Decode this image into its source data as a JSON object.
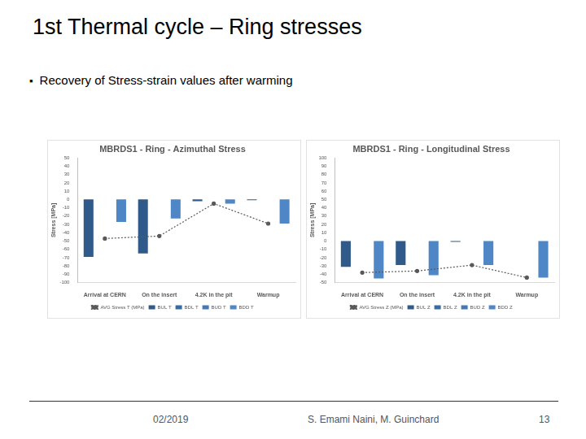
{
  "slide": {
    "title": "1st Thermal cycle – Ring stresses",
    "bullet": "Recovery of Stress-strain values after warming",
    "footer": {
      "date": "02/2019",
      "authors": "S. Emami Naini, M. Guinchard",
      "page": "13"
    }
  },
  "chart_data": [
    {
      "type": "bar",
      "title": "MBRDS1 - Ring - Azimuthal Stress",
      "y_label": "Stress [MPa]",
      "categories": [
        "Arrival at CERN",
        "On the insert",
        "4.2K in the pit",
        "Warmup"
      ],
      "series": [
        {
          "name": "BUL T",
          "color": "#2f5a8a",
          "values": [
            -69,
            -65,
            -2,
            -1
          ]
        },
        {
          "name": "BDL T",
          "color": "#3a6aa3",
          "values": [
            null,
            null,
            null,
            null
          ]
        },
        {
          "name": "BUD T",
          "color": "#4678b6",
          "values": [
            null,
            null,
            null,
            null
          ]
        },
        {
          "name": "BDD T",
          "color": "#4f86c6",
          "values": [
            -27,
            -23,
            -5,
            -29
          ]
        },
        {
          "name": "AVG Stress T (MPa)",
          "type": "line",
          "color": "#595959",
          "line_style": "dotted",
          "marker": "circle",
          "values": [
            -47,
            -44,
            -5,
            -29
          ]
        }
      ],
      "ylim": [
        -100,
        50
      ],
      "yticks": [
        -100,
        -90,
        -80,
        -70,
        -60,
        -50,
        -40,
        -30,
        -20,
        -10,
        0,
        10,
        20,
        30,
        40,
        50
      ],
      "grid": false,
      "legend": "bottom"
    },
    {
      "type": "bar",
      "title": "MBRDS1 - Ring - Longitudinal Stress",
      "y_label": "Stress [MPa]",
      "categories": [
        "Arrival at CERN",
        "On the insert",
        "4.2K in the pit",
        "Warmup"
      ],
      "series": [
        {
          "name": "BUL Z",
          "color": "#2f5a8a",
          "values": [
            -31,
            -29,
            -1,
            null
          ]
        },
        {
          "name": "BDL Z",
          "color": "#3a6aa3",
          "values": [
            null,
            null,
            null,
            null
          ]
        },
        {
          "name": "BUD Z",
          "color": "#4678b6",
          "values": [
            null,
            null,
            null,
            null
          ]
        },
        {
          "name": "BDD Z",
          "color": "#4f86c6",
          "values": [
            -45,
            -41,
            -29,
            -44
          ]
        },
        {
          "name": "AVG Stress Z (MPa)",
          "type": "line",
          "color": "#595959",
          "line_style": "dotted",
          "marker": "circle",
          "values": [
            -38,
            -36,
            -29,
            -44
          ]
        }
      ],
      "ylim": [
        -50,
        100
      ],
      "yticks": [
        -50,
        -40,
        -30,
        -20,
        -10,
        0,
        10,
        20,
        30,
        40,
        50,
        60,
        70,
        80,
        90,
        100
      ],
      "grid": false,
      "legend": "bottom"
    }
  ]
}
